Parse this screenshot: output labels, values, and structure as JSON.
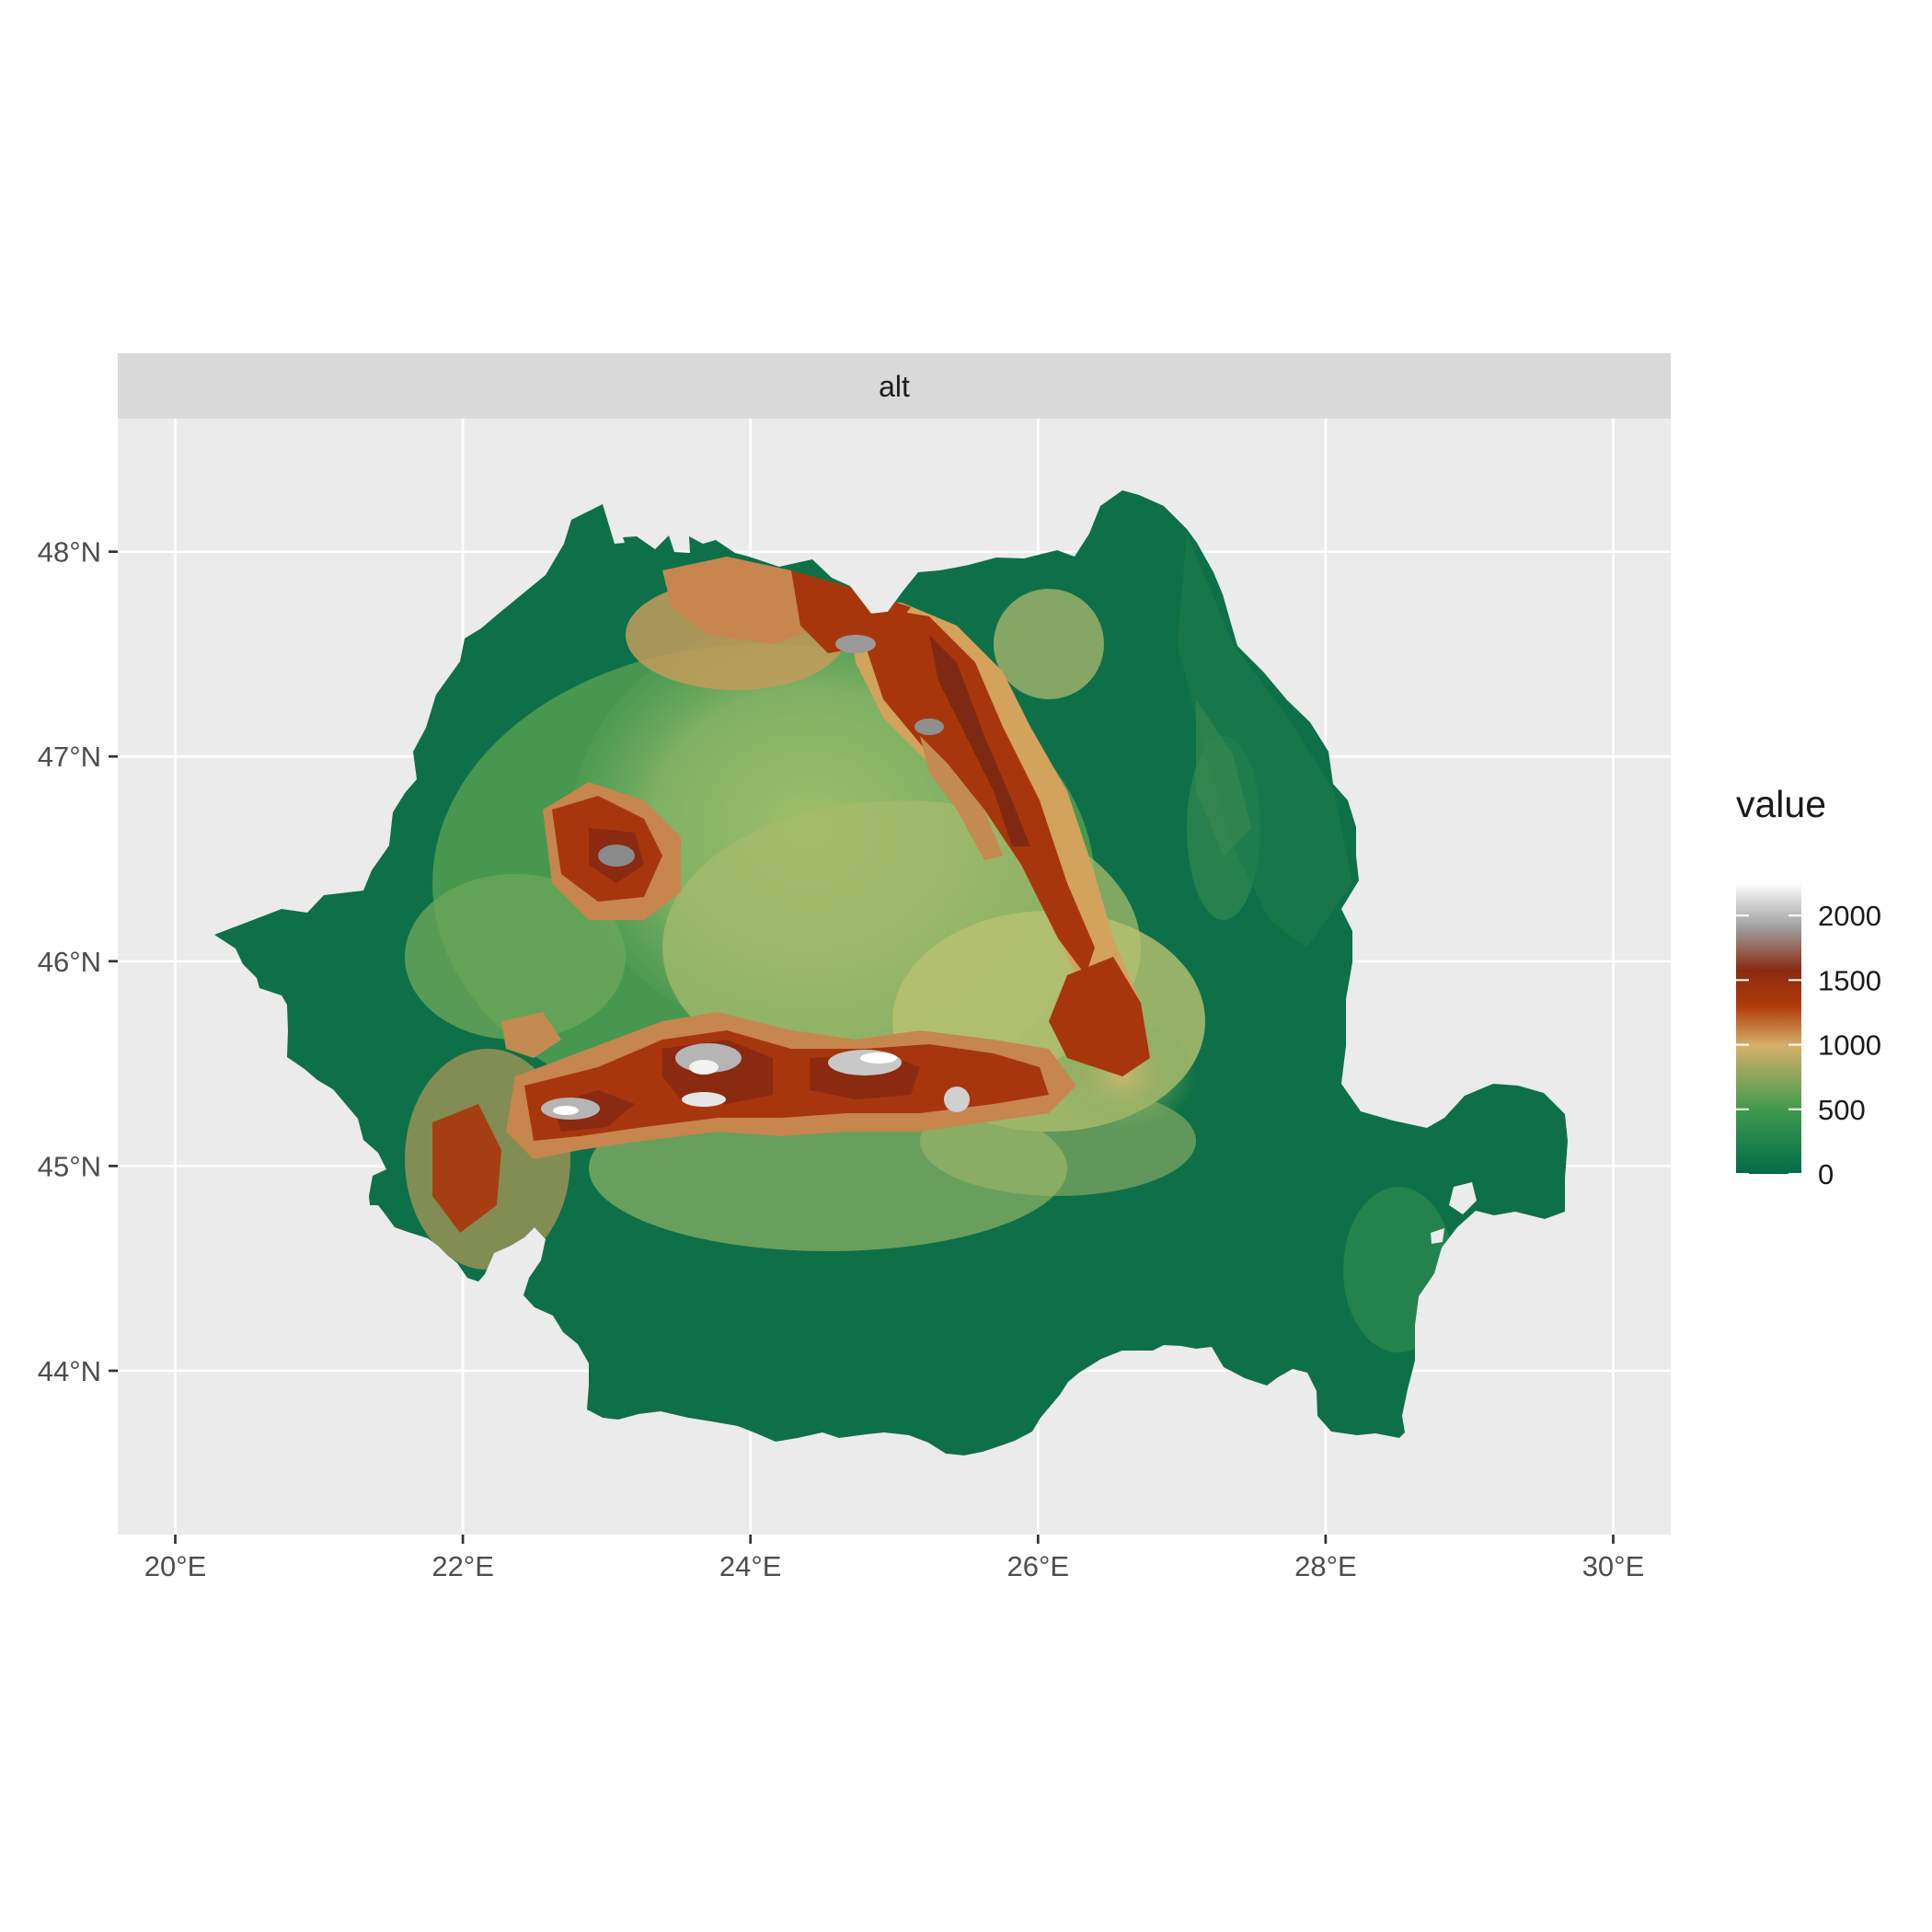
{
  "chart_data": {
    "type": "heatmap",
    "facet_label": "alt",
    "xlabel": "",
    "ylabel": "",
    "x_ticks": [
      "20°E",
      "22°E",
      "24°E",
      "26°E",
      "28°E",
      "30°E"
    ],
    "y_ticks": [
      "48°N",
      "47°N",
      "46°N",
      "45°N",
      "44°N"
    ],
    "x_values": [
      20,
      22,
      24,
      26,
      28,
      30
    ],
    "y_values": [
      48,
      47,
      46,
      45,
      44
    ],
    "xlim": [
      19.6,
      30.4
    ],
    "ylim": [
      43.2,
      48.65
    ],
    "grid": true,
    "legend": {
      "title": "value",
      "placement": "right",
      "breaks": [
        "2000",
        "1500",
        "1000",
        "500",
        "0"
      ],
      "break_values": [
        2000,
        1500,
        1000,
        500,
        0
      ],
      "range": [
        0,
        2250
      ],
      "colors": [
        "#006b4a",
        "#3f9a4c",
        "#d6b06a",
        "#b03a0a",
        "#8a2a10",
        "#a0a0a0",
        "#ffffff"
      ]
    },
    "colors": {
      "panel_background": "#ebebeb",
      "strip_background": "#d9d9d9",
      "grid_line": "#ffffff",
      "lowland": "#006b4a",
      "hills": "#5da557",
      "plateau": "#b8c072",
      "mid_mountain": "#d19a5a",
      "high_mountain": "#a8320c",
      "peaks": "#e6e6e6"
    }
  }
}
